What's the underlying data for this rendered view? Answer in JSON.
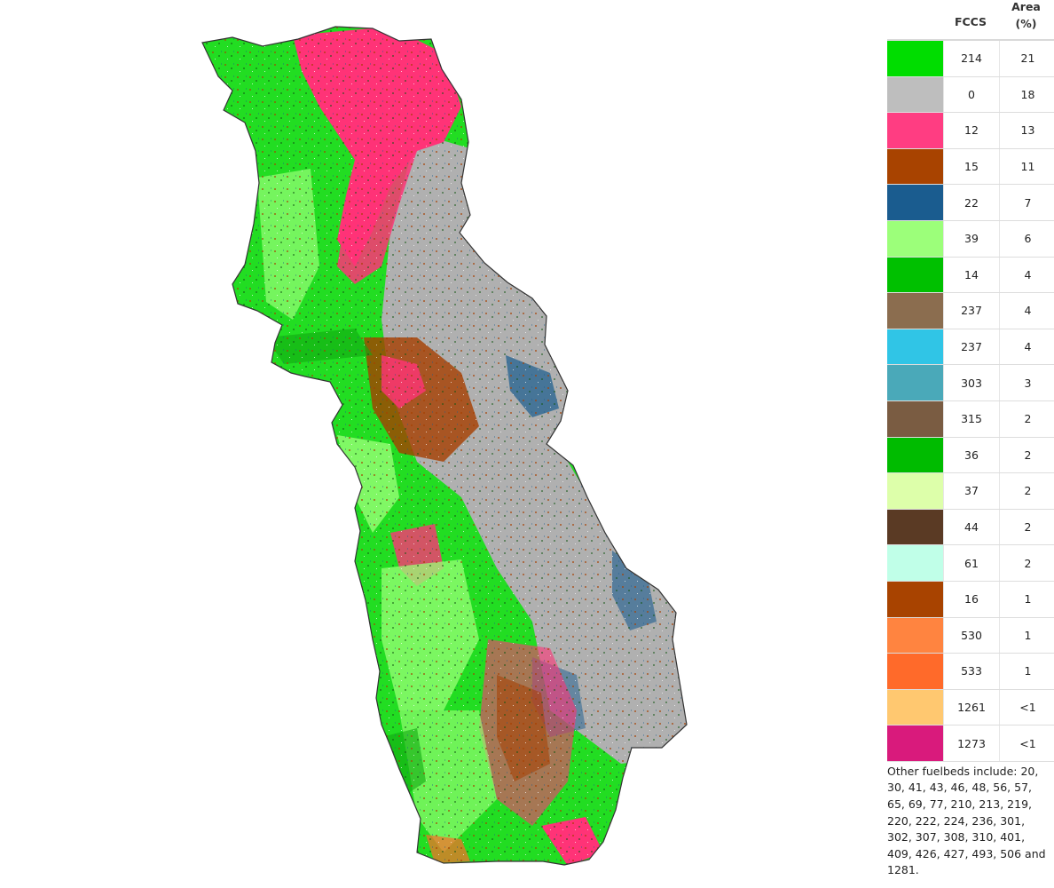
{
  "map": {
    "colors": {
      "outline": "#333333",
      "base_green": "#22dd22",
      "gray": "#b0b0b0",
      "pink": "#ff3377",
      "brown": "#a63f00",
      "blue": "#1a5c8f",
      "light_green": "#99ff77",
      "dark_green": "#11aa11"
    }
  },
  "legend": {
    "header": {
      "fccs": "FCCS",
      "area": "Area\n(%)"
    },
    "rows": [
      {
        "fccs": "214",
        "area": "21",
        "color": "#00dd00"
      },
      {
        "fccs": "0",
        "area": "18",
        "color": "#bebebe"
      },
      {
        "fccs": "12",
        "area": "13",
        "color": "#ff3d82"
      },
      {
        "fccs": "15",
        "area": "11",
        "color": "#a84300"
      },
      {
        "fccs": "22",
        "area": "7",
        "color": "#1a5c8f"
      },
      {
        "fccs": "39",
        "area": "6",
        "color": "#9cff7a"
      },
      {
        "fccs": "14",
        "area": "4",
        "color": "#00c000"
      },
      {
        "fccs": "237",
        "area": "4",
        "color": "#8b6d4f"
      },
      {
        "fccs": "237",
        "area": "4",
        "color": "#30c5e6"
      },
      {
        "fccs": "303",
        "area": "3",
        "color": "#4aa9b9"
      },
      {
        "fccs": "315",
        "area": "2",
        "color": "#7a5c42"
      },
      {
        "fccs": "36",
        "area": "2",
        "color": "#00bb00"
      },
      {
        "fccs": "37",
        "area": "2",
        "color": "#ddffaa"
      },
      {
        "fccs": "44",
        "area": "2",
        "color": "#5a3a24"
      },
      {
        "fccs": "61",
        "area": "2",
        "color": "#c0ffe8"
      },
      {
        "fccs": "16",
        "area": "1",
        "color": "#a84300"
      },
      {
        "fccs": "530",
        "area": "1",
        "color": "#ff8440"
      },
      {
        "fccs": "533",
        "area": "1",
        "color": "#ff6a2a"
      },
      {
        "fccs": "1261",
        "area": "<1",
        "color": "#ffc870"
      },
      {
        "fccs": "1273",
        "area": "<1",
        "color": "#d91a7c"
      }
    ],
    "note": "Other fuelbeds include: 20, 30, 41, 43, 46, 48, 56, 57, 65, 69, 77, 210, 213, 219, 220, 222, 224, 236, 301, 302, 307, 308, 310, 401, 409, 426, 427, 493, 506 and 1281."
  }
}
